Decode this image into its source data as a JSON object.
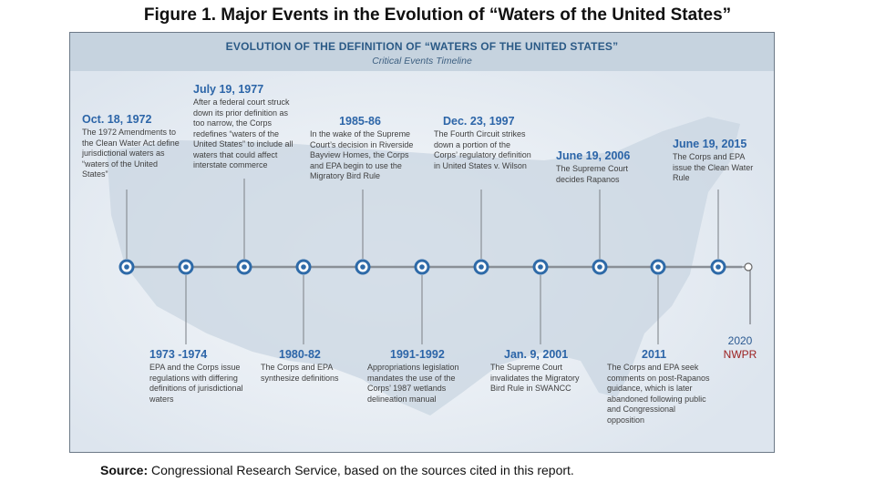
{
  "figure_title": "Figure 1. Major Events in the Evolution of “Waters of the United States”",
  "panel": {
    "title": "EVOLUTION OF THE DEFINITION OF “WATERS OF THE UNITED STATES”",
    "subtitle": "Critical Events Timeline"
  },
  "events_above": [
    {
      "date": "Oct. 18, 1972",
      "text": "The 1972 Amendments to the Clean Water Act define jurisdictional waters as “waters of the United States”"
    },
    {
      "date": "July 19, 1977",
      "text": "After a federal court struck down its prior definition as too narrow, the Corps redefines “waters of the United States” to include all waters that could affect interstate commerce"
    },
    {
      "date": "1985-86",
      "text": "In the wake of the Supreme Court’s decision in Riverside Bayview Homes, the Corps and EPA begin to use the Migratory Bird Rule"
    },
    {
      "date": "Dec. 23, 1997",
      "text": "The Fourth Circuit strikes down a portion of the Corps’ regulatory definition in United States v. Wilson"
    },
    {
      "date": "June 19, 2006",
      "text": "The Supreme Court decides Rapanos"
    },
    {
      "date": "June 19, 2015",
      "text": "The Corps and EPA issue the Clean Water Rule"
    }
  ],
  "events_below": [
    {
      "date": "1973 -1974",
      "text": "EPA and the Corps issue regulations with differing definitions of jurisdictional waters"
    },
    {
      "date": "1980-82",
      "text": "The Corps and EPA synthesize definitions"
    },
    {
      "date": "1991-1992",
      "text": "Appropriations legislation mandates the use of the Corps’ 1987 wetlands delineation manual"
    },
    {
      "date": "Jan. 9, 2001",
      "text": "The Supreme Court invalidates the Migratory Bird Rule in SWANCC"
    },
    {
      "date": "2011",
      "text": "The Corps and EPA seek comments on post-Rapanos guidance, which is later abandoned following public and Congressional opposition"
    }
  ],
  "added_event": {
    "year": "2020",
    "label": "NWPR"
  },
  "source": {
    "label": "Source:",
    "text": " Congressional Research Service, based on the sources cited in this report."
  },
  "colors": {
    "date_blue": "#2c65a8",
    "node_outer": "#2e6aa8",
    "timeline": "#8a8f96",
    "nwpr_red": "#9b2020",
    "panel_header": "#c6d3df",
    "map_fill": "#c9d6e2"
  }
}
